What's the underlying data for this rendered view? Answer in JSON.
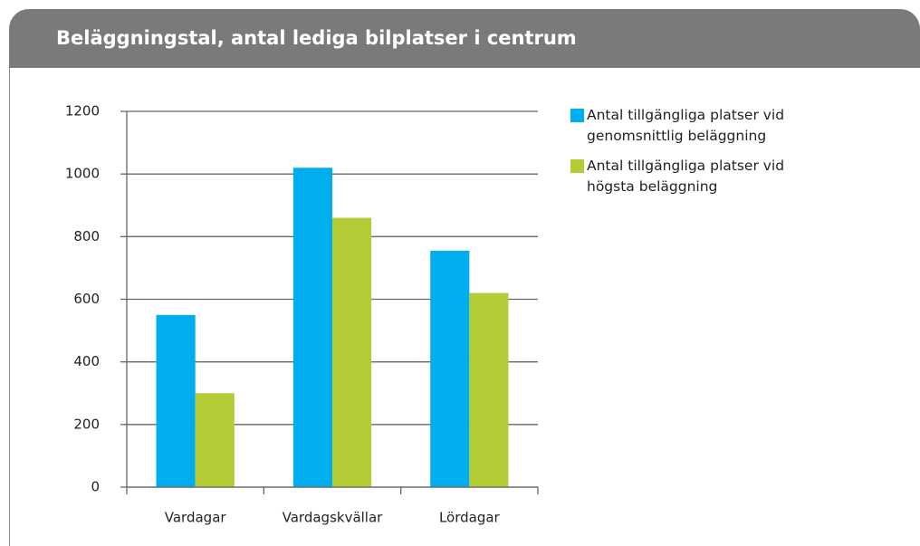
{
  "chart_data": {
    "type": "bar",
    "title": "Beläggningstal, antal  lediga bilplatser i centrum",
    "categories": [
      "Vardagar",
      "Vardagskvällar",
      "Lördagar"
    ],
    "series": [
      {
        "name": "Antal tillgängliga platser vid genomsnittlig beläggning",
        "color": "#00aeef",
        "values": [
          550,
          1020,
          755
        ]
      },
      {
        "name": "Antal tillgängliga platser vid högsta beläggning",
        "color": "#b3cb35",
        "values": [
          300,
          860,
          620
        ]
      }
    ],
    "ylim": [
      0,
      1200
    ],
    "yticks": [
      0,
      200,
      400,
      600,
      800,
      1000,
      1200
    ],
    "grid": true
  }
}
